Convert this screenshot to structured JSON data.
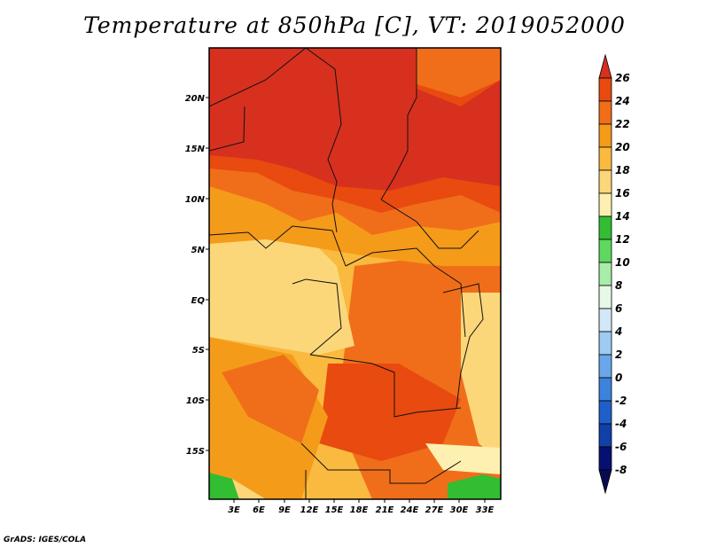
{
  "title": "Temperature at 850hPa [C], VT: 2019052000",
  "credit": "GrADS: IGES/COLA",
  "map": {
    "region": "Central Africa",
    "lat_labels": [
      "20N",
      "15N",
      "10N",
      "5N",
      "EQ",
      "5S",
      "10S",
      "15S"
    ],
    "lon_labels": [
      "3E",
      "6E",
      "9E",
      "12E",
      "15E",
      "18E",
      "21E",
      "24E",
      "27E",
      "30E",
      "33E"
    ]
  },
  "colorbar": {
    "labels": [
      "26",
      "24",
      "22",
      "20",
      "18",
      "16",
      "14",
      "12",
      "10",
      "8",
      "6",
      "4",
      "2",
      "0",
      "-2",
      "-4",
      "-6",
      "-8"
    ],
    "colors": [
      "#d7301f",
      "#e84a10",
      "#f06e1a",
      "#f59b1a",
      "#f9ba3f",
      "#fcd77a",
      "#fdf0b0",
      "#32bd32",
      "#5fd85f",
      "#a8eda8",
      "#e6f8e6",
      "#d2e8f8",
      "#9ecbf2",
      "#6aa7ea",
      "#3d83de",
      "#1f5fcc",
      "#1040a8",
      "#061070",
      "#0a0a50"
    ]
  }
}
